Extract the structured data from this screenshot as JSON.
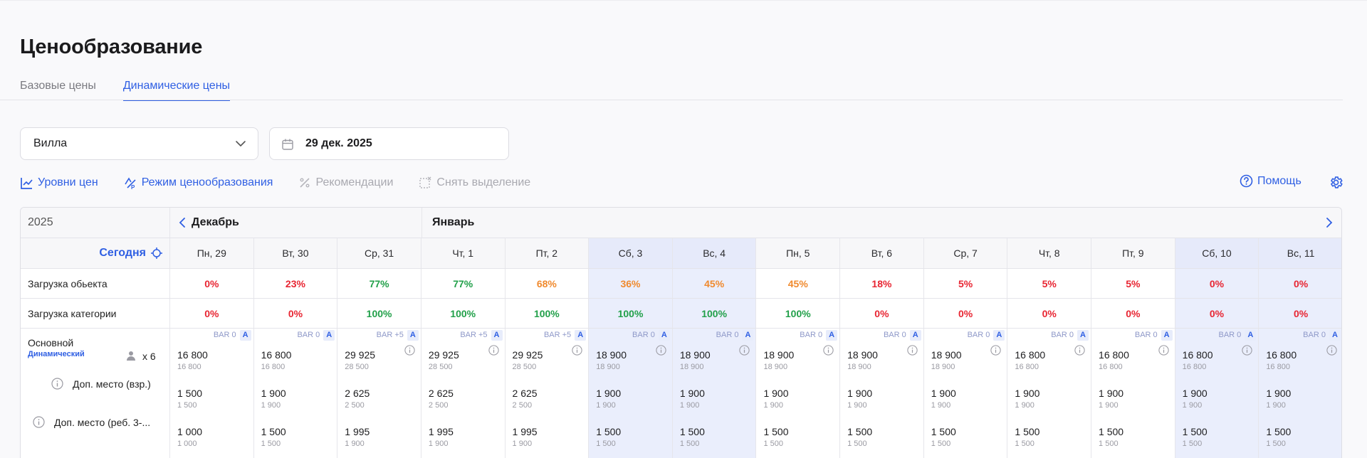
{
  "page_title": "Ценообразование",
  "tabs": [
    {
      "label": "Базовые цены",
      "active": false
    },
    {
      "label": "Динамические цены",
      "active": true
    }
  ],
  "filters": {
    "property_select": "Вилла",
    "date": "29 дек. 2025"
  },
  "toolbar": {
    "price_levels": "Уровни цен",
    "pricing_mode": "Режим ценообразования",
    "recommendations": "Рекомендации",
    "clear_selection": "Снять выделение",
    "help": "Помощь"
  },
  "calendar": {
    "year": "2025",
    "months": [
      "Декабрь",
      "Январь"
    ],
    "today_label": "Сегодня",
    "row_labels": {
      "occupancy_object": "Загрузка обьекта",
      "occupancy_category": "Загрузка категории",
      "rate_name": "Основной",
      "rate_type": "Динамический",
      "guests": "x 6",
      "extra_adult": "Доп. место (взр.)",
      "extra_child": "Доп. место (реб. 3-..."
    },
    "colors": {
      "accent": "#2f5fe3",
      "red": "#e82633",
      "orange": "#f08a2e",
      "green": "#22a04a",
      "weekend_bg": "#eaeefc"
    },
    "days": [
      {
        "label": "Пн, 29",
        "weekend": false,
        "occ_obj": "0%",
        "occ_obj_color": "red",
        "occ_cat": "0%",
        "occ_cat_color": "red",
        "bar": "BAR 0",
        "info": false,
        "price": "16 800",
        "price_sub": "16 800",
        "adult": "1 500",
        "adult_sub": "1 500",
        "child": "1 000",
        "child_sub": "1 000"
      },
      {
        "label": "Вт, 30",
        "weekend": false,
        "occ_obj": "23%",
        "occ_obj_color": "red",
        "occ_cat": "0%",
        "occ_cat_color": "red",
        "bar": "BAR 0",
        "info": false,
        "price": "16 800",
        "price_sub": "16 800",
        "adult": "1 900",
        "adult_sub": "1 900",
        "child": "1 500",
        "child_sub": "1 500"
      },
      {
        "label": "Ср, 31",
        "weekend": false,
        "occ_obj": "77%",
        "occ_obj_color": "green",
        "occ_cat": "100%",
        "occ_cat_color": "green",
        "bar": "BAR +5",
        "info": true,
        "price": "29 925",
        "price_sub": "28 500",
        "adult": "2 625",
        "adult_sub": "2 500",
        "child": "1 995",
        "child_sub": "1 900"
      },
      {
        "label": "Чт, 1",
        "weekend": false,
        "occ_obj": "77%",
        "occ_obj_color": "green",
        "occ_cat": "100%",
        "occ_cat_color": "green",
        "bar": "BAR +5",
        "info": true,
        "price": "29 925",
        "price_sub": "28 500",
        "adult": "2 625",
        "adult_sub": "2 500",
        "child": "1 995",
        "child_sub": "1 900"
      },
      {
        "label": "Пт, 2",
        "weekend": false,
        "occ_obj": "68%",
        "occ_obj_color": "orange",
        "occ_cat": "100%",
        "occ_cat_color": "green",
        "bar": "BAR +5",
        "info": true,
        "price": "29 925",
        "price_sub": "28 500",
        "adult": "2 625",
        "adult_sub": "2 500",
        "child": "1 995",
        "child_sub": "1 900"
      },
      {
        "label": "Сб, 3",
        "weekend": true,
        "occ_obj": "36%",
        "occ_obj_color": "orange",
        "occ_cat": "100%",
        "occ_cat_color": "green",
        "bar": "BAR 0",
        "info": true,
        "price": "18 900",
        "price_sub": "18 900",
        "adult": "1 900",
        "adult_sub": "1 900",
        "child": "1 500",
        "child_sub": "1 500"
      },
      {
        "label": "Вс, 4",
        "weekend": true,
        "occ_obj": "45%",
        "occ_obj_color": "orange",
        "occ_cat": "100%",
        "occ_cat_color": "green",
        "bar": "BAR 0",
        "info": true,
        "price": "18 900",
        "price_sub": "18 900",
        "adult": "1 900",
        "adult_sub": "1 900",
        "child": "1 500",
        "child_sub": "1 500"
      },
      {
        "label": "Пн, 5",
        "weekend": false,
        "occ_obj": "45%",
        "occ_obj_color": "orange",
        "occ_cat": "100%",
        "occ_cat_color": "green",
        "bar": "BAR 0",
        "info": true,
        "price": "18 900",
        "price_sub": "18 900",
        "adult": "1 900",
        "adult_sub": "1 900",
        "child": "1 500",
        "child_sub": "1 500"
      },
      {
        "label": "Вт, 6",
        "weekend": false,
        "occ_obj": "18%",
        "occ_obj_color": "red",
        "occ_cat": "0%",
        "occ_cat_color": "red",
        "bar": "BAR 0",
        "info": true,
        "price": "18 900",
        "price_sub": "18 900",
        "adult": "1 900",
        "adult_sub": "1 900",
        "child": "1 500",
        "child_sub": "1 500"
      },
      {
        "label": "Ср, 7",
        "weekend": false,
        "occ_obj": "5%",
        "occ_obj_color": "red",
        "occ_cat": "0%",
        "occ_cat_color": "red",
        "bar": "BAR 0",
        "info": true,
        "price": "18 900",
        "price_sub": "18 900",
        "adult": "1 900",
        "adult_sub": "1 900",
        "child": "1 500",
        "child_sub": "1 500"
      },
      {
        "label": "Чт, 8",
        "weekend": false,
        "occ_obj": "5%",
        "occ_obj_color": "red",
        "occ_cat": "0%",
        "occ_cat_color": "red",
        "bar": "BAR 0",
        "info": true,
        "price": "16 800",
        "price_sub": "16 800",
        "adult": "1 900",
        "adult_sub": "1 900",
        "child": "1 500",
        "child_sub": "1 500"
      },
      {
        "label": "Пт, 9",
        "weekend": false,
        "occ_obj": "5%",
        "occ_obj_color": "red",
        "occ_cat": "0%",
        "occ_cat_color": "red",
        "bar": "BAR 0",
        "info": true,
        "price": "16 800",
        "price_sub": "16 800",
        "adult": "1 900",
        "adult_sub": "1 900",
        "child": "1 500",
        "child_sub": "1 500"
      },
      {
        "label": "Сб, 10",
        "weekend": true,
        "occ_obj": "0%",
        "occ_obj_color": "red",
        "occ_cat": "0%",
        "occ_cat_color": "red",
        "bar": "BAR 0",
        "info": true,
        "price": "16 800",
        "price_sub": "16 800",
        "adult": "1 900",
        "adult_sub": "1 900",
        "child": "1 500",
        "child_sub": "1 500"
      },
      {
        "label": "Вс, 11",
        "weekend": true,
        "occ_obj": "0%",
        "occ_obj_color": "red",
        "occ_cat": "0%",
        "occ_cat_color": "red",
        "bar": "BAR 0",
        "info": true,
        "price": "16 800",
        "price_sub": "16 800",
        "adult": "1 900",
        "adult_sub": "1 900",
        "child": "1 500",
        "child_sub": "1 500"
      }
    ],
    "auto_badge": "A"
  }
}
